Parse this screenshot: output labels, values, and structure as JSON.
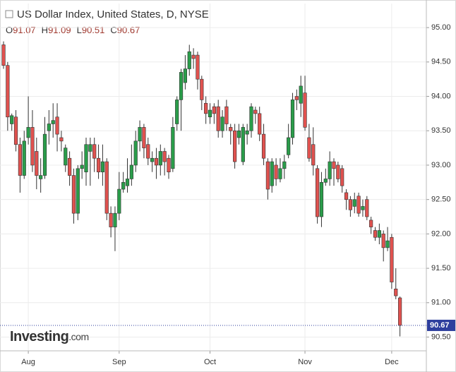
{
  "chart_data": {
    "type": "candlestick",
    "title": "US Dollar Index, United States, D, NYSE",
    "ohlc_prefixes": [
      "O",
      "H",
      "L",
      "C"
    ],
    "watermark": [
      "Investing",
      ".com"
    ],
    "up_color": "#2a9d4a",
    "down_color": "#e0524f",
    "last_price_color": "#2e3f9e",
    "grid": true,
    "categories": [
      null,
      null,
      null,
      null,
      null,
      null,
      "Aug",
      null,
      null,
      null,
      null,
      null,
      null,
      null,
      null,
      null,
      null,
      null,
      null,
      null,
      null,
      null,
      null,
      null,
      null,
      null,
      null,
      null,
      "Sep",
      null,
      null,
      null,
      null,
      null,
      null,
      null,
      null,
      null,
      null,
      null,
      null,
      null,
      null,
      null,
      null,
      null,
      null,
      null,
      null,
      null,
      "Oct",
      null,
      null,
      null,
      null,
      null,
      null,
      null,
      null,
      null,
      null,
      null,
      null,
      null,
      null,
      null,
      null,
      null,
      null,
      null,
      null,
      null,
      null,
      "Nov",
      null,
      null,
      null,
      null,
      null,
      null,
      null,
      null,
      null,
      null,
      null,
      null,
      null,
      null,
      null,
      null,
      null,
      null,
      null,
      null,
      "Dec",
      null,
      null
    ],
    "open": [
      94.75,
      94.45,
      93.6,
      93.7,
      93.3,
      92.85,
      93.4,
      93.55,
      93.2,
      92.8,
      92.85,
      93.5,
      93.6,
      93.7,
      93.4,
      93.0,
      93.1,
      92.85,
      92.3,
      92.95,
      92.9,
      93.2,
      93.3,
      93.1,
      92.9,
      93.05,
      92.3,
      92.1,
      92.3,
      92.65,
      92.7,
      92.8,
      93.0,
      93.35,
      93.55,
      93.3,
      93.05,
      93.1,
      93.0,
      93.2,
      93.1,
      92.95,
      93.6,
      93.95,
      94.2,
      94.4,
      94.6,
      94.6,
      94.25,
      93.9,
      93.7,
      93.85,
      93.85,
      93.5,
      93.85,
      93.55,
      93.5,
      93.4,
      93.05,
      93.45,
      93.5,
      93.8,
      93.75,
      93.45,
      93.05,
      92.7,
      93.0,
      92.8,
      92.95,
      93.15,
      93.4,
      94.0,
      93.9,
      94.05,
      93.4,
      93.3,
      92.95,
      92.25,
      92.75,
      92.8,
      93.05,
      93.0,
      92.95,
      92.6,
      92.5,
      92.4,
      92.55,
      92.35,
      92.5,
      92.2,
      92.05,
      91.95,
      92.0,
      91.8,
      91.95,
      91.2,
      91.07
    ],
    "high": [
      94.8,
      94.5,
      93.75,
      93.8,
      93.4,
      93.5,
      94.0,
      93.8,
      93.4,
      93.1,
      93.7,
      93.8,
      93.9,
      93.9,
      93.5,
      93.3,
      93.2,
      92.95,
      93.0,
      93.2,
      93.4,
      93.4,
      93.4,
      93.3,
      93.3,
      93.1,
      92.4,
      92.4,
      92.9,
      92.9,
      93.1,
      93.3,
      93.5,
      93.65,
      93.6,
      93.4,
      93.2,
      93.25,
      93.3,
      93.25,
      93.15,
      93.7,
      94.0,
      94.4,
      94.6,
      94.75,
      94.7,
      94.65,
      94.3,
      94.0,
      93.9,
      93.9,
      93.95,
      93.8,
      93.95,
      93.6,
      93.6,
      93.6,
      93.6,
      93.6,
      93.9,
      93.85,
      93.85,
      93.6,
      93.1,
      93.1,
      93.1,
      93.1,
      93.15,
      93.6,
      94.05,
      94.1,
      94.3,
      94.3,
      93.6,
      93.55,
      93.0,
      92.9,
      92.95,
      93.2,
      93.1,
      93.05,
      93.0,
      92.65,
      92.55,
      92.6,
      92.6,
      92.5,
      92.55,
      92.25,
      92.1,
      92.15,
      92.05,
      92.1,
      92.0,
      91.5,
      91.09
    ],
    "low": [
      94.4,
      93.5,
      93.5,
      93.2,
      92.6,
      92.8,
      93.3,
      92.9,
      92.65,
      92.6,
      92.8,
      93.3,
      93.4,
      93.2,
      93.2,
      92.9,
      92.7,
      92.15,
      92.2,
      92.8,
      92.7,
      92.7,
      92.9,
      92.8,
      92.7,
      92.2,
      91.95,
      91.75,
      92.2,
      92.6,
      92.6,
      92.7,
      92.9,
      93.2,
      93.1,
      93.0,
      92.9,
      92.8,
      92.85,
      92.85,
      92.8,
      92.9,
      93.5,
      93.5,
      94.1,
      94.3,
      94.4,
      94.1,
      93.8,
      93.6,
      93.6,
      93.6,
      93.4,
      93.4,
      93.5,
      93.3,
      92.95,
      93.3,
      93.0,
      93.3,
      93.4,
      93.6,
      93.35,
      93.0,
      92.5,
      92.6,
      92.7,
      92.75,
      92.8,
      93.1,
      93.3,
      93.8,
      93.7,
      93.5,
      93.05,
      92.85,
      92.15,
      92.1,
      92.7,
      92.7,
      92.7,
      92.75,
      92.6,
      92.35,
      92.25,
      92.3,
      92.25,
      92.25,
      92.2,
      92.0,
      91.9,
      91.85,
      91.6,
      91.75,
      91.2,
      91.05,
      90.51
    ],
    "close": [
      94.45,
      93.7,
      93.72,
      93.3,
      92.85,
      93.35,
      93.55,
      93.0,
      92.85,
      92.85,
      93.45,
      93.6,
      93.65,
      93.45,
      93.35,
      93.25,
      92.85,
      92.3,
      92.95,
      93.0,
      93.3,
      93.3,
      93.1,
      92.9,
      93.05,
      92.3,
      92.1,
      92.3,
      92.65,
      92.75,
      92.8,
      93.0,
      93.35,
      93.55,
      93.25,
      93.1,
      93.1,
      93.0,
      93.2,
      93.05,
      92.9,
      93.55,
      93.95,
      94.35,
      94.4,
      94.65,
      94.55,
      94.25,
      93.95,
      93.75,
      93.8,
      93.75,
      93.5,
      93.7,
      93.6,
      93.5,
      93.05,
      93.5,
      93.55,
      93.5,
      93.85,
      93.75,
      93.45,
      93.1,
      92.65,
      93.05,
      92.8,
      92.95,
      93.05,
      93.4,
      93.95,
      93.95,
      94.15,
      93.55,
      93.1,
      93.0,
      92.25,
      92.75,
      92.8,
      93.05,
      92.95,
      92.8,
      92.7,
      92.5,
      92.35,
      92.5,
      92.3,
      92.4,
      92.25,
      92.1,
      91.95,
      92.05,
      91.8,
      91.9,
      91.3,
      91.1,
      90.67
    ],
    "ylim": [
      90.3,
      95.35
    ],
    "yticks": [
      {
        "value": 95,
        "label": "95.00"
      },
      {
        "value": 94.5,
        "label": "94.50"
      },
      {
        "value": 94,
        "label": "94.00"
      },
      {
        "value": 93.5,
        "label": "93.50"
      },
      {
        "value": 93,
        "label": "93.00"
      },
      {
        "value": 92.5,
        "label": "92.50"
      },
      {
        "value": 92,
        "label": "92.00"
      },
      {
        "value": 91.5,
        "label": "91.50"
      },
      {
        "value": 91,
        "label": "91.00"
      },
      {
        "value": 90.5,
        "label": "90.50"
      }
    ]
  }
}
